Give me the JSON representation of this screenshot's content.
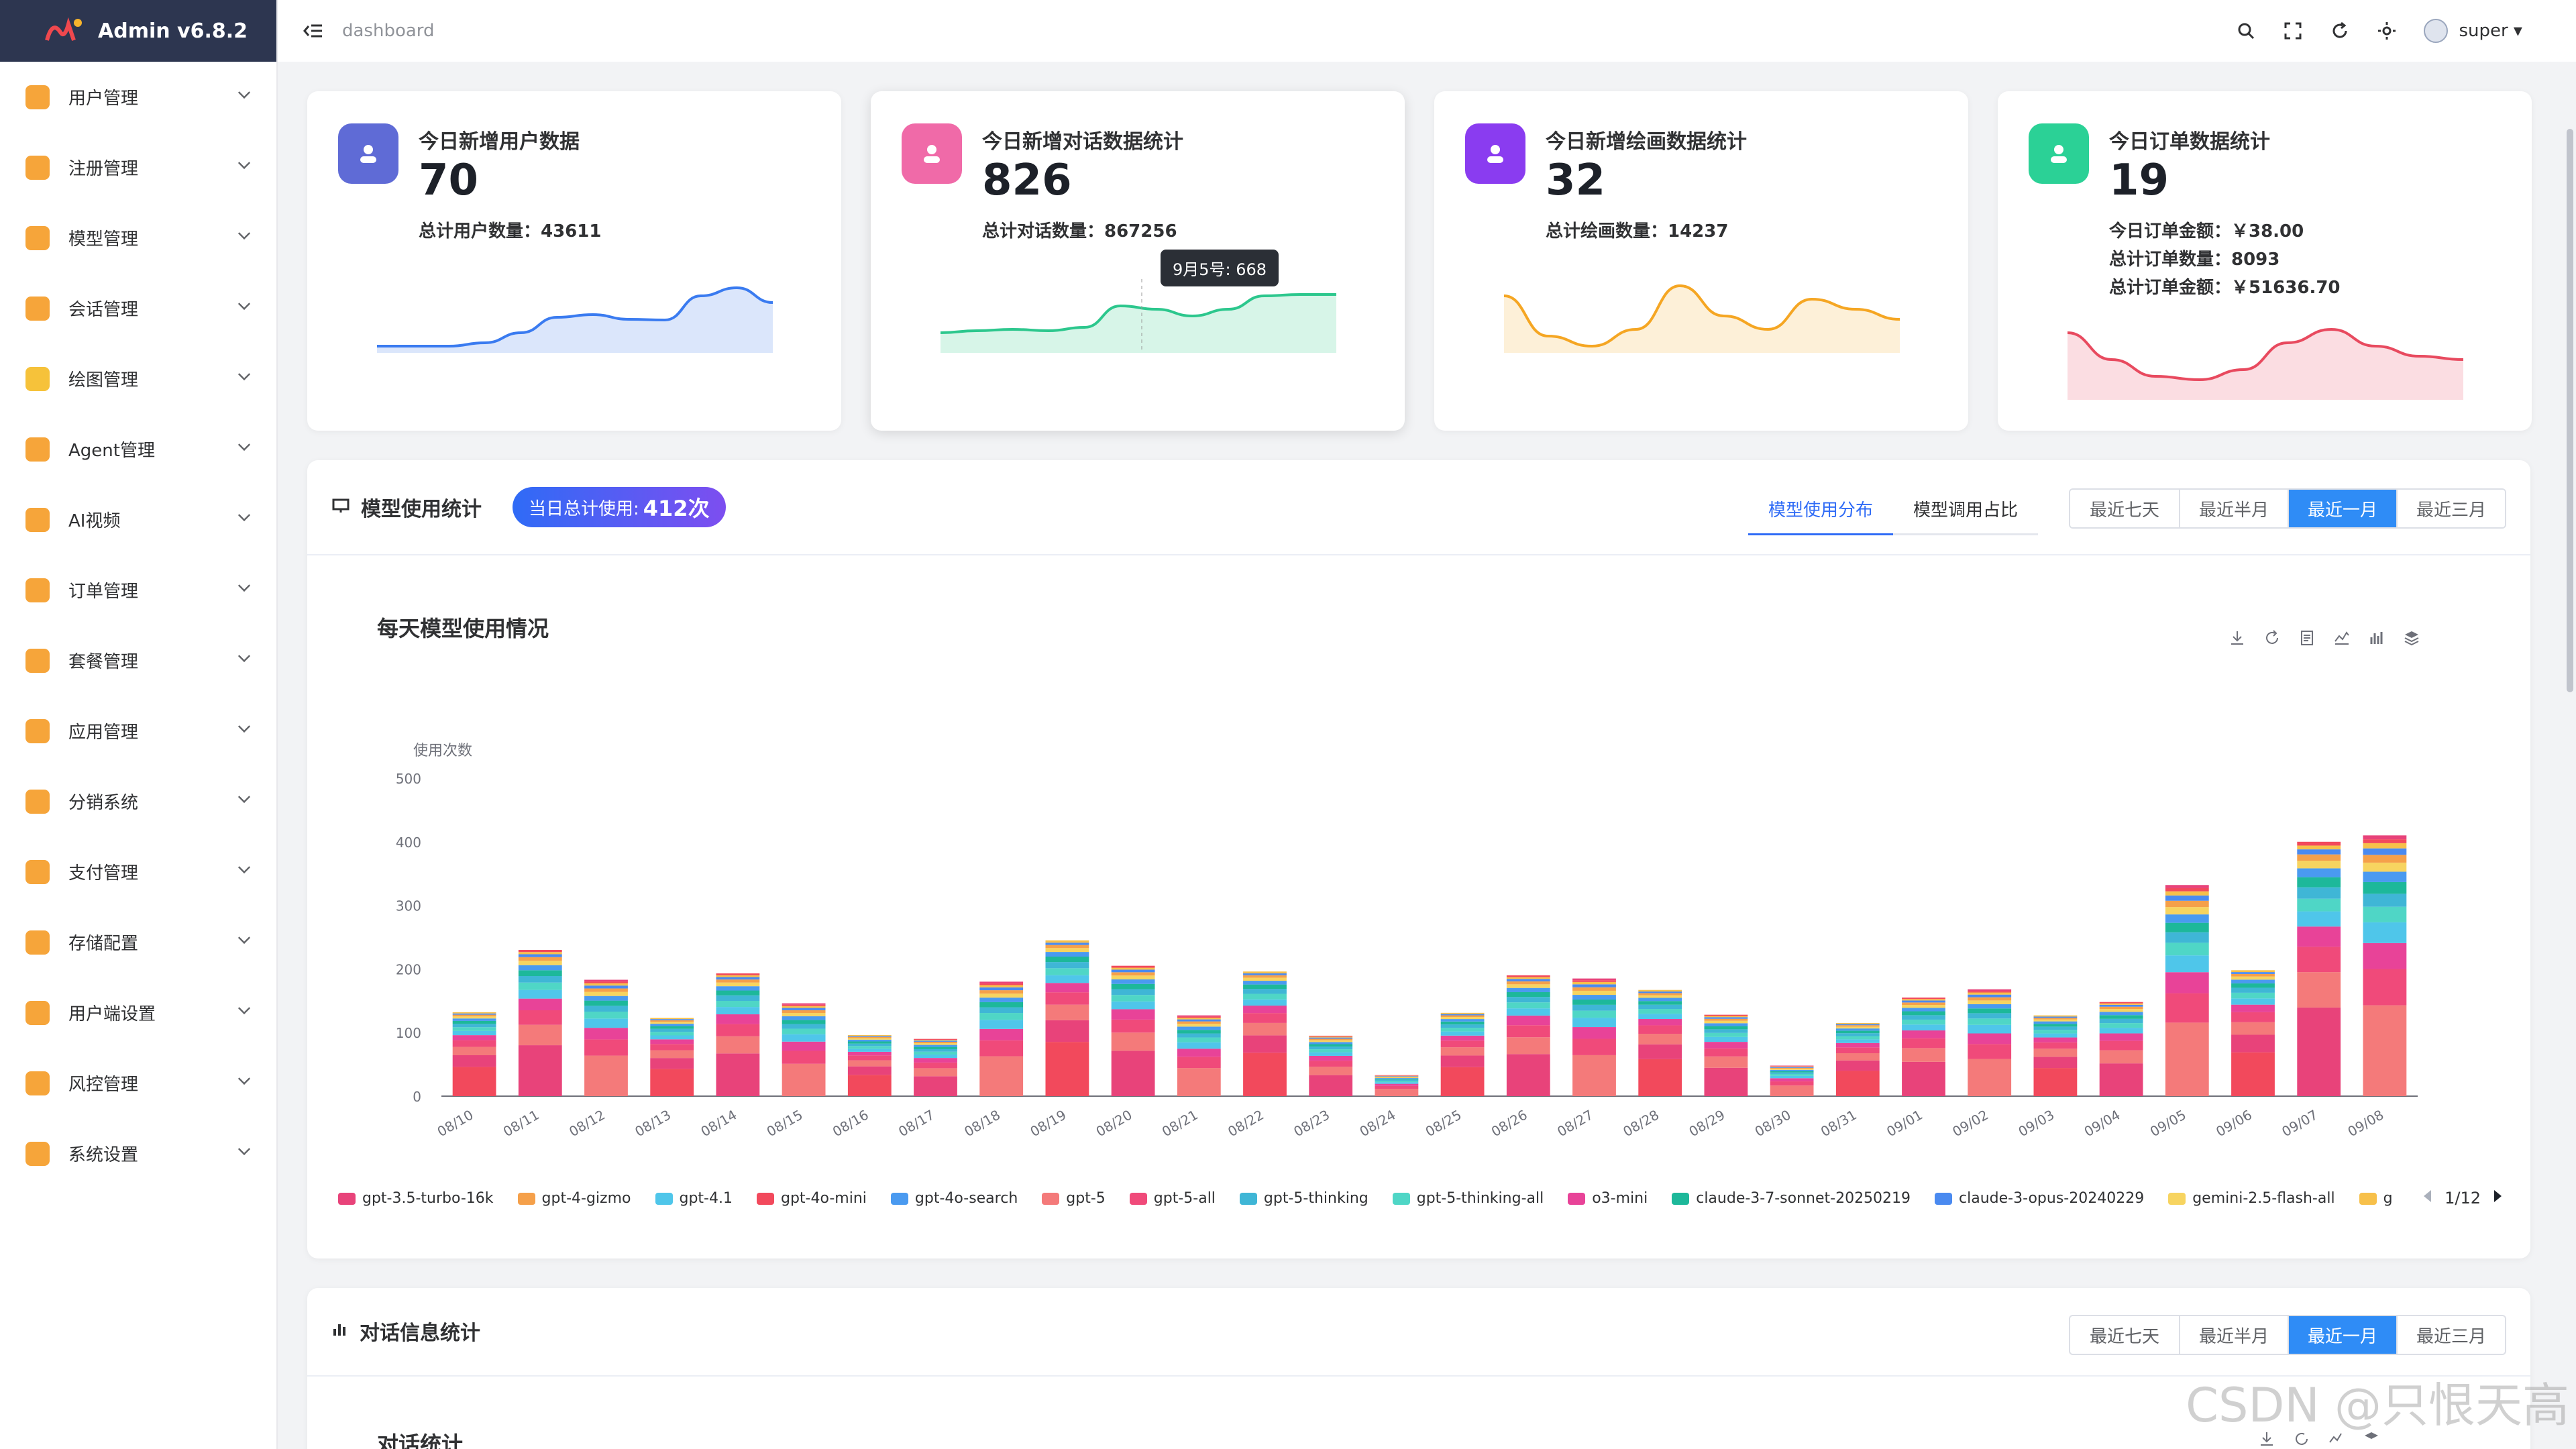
{
  "app": {
    "title": "Admin v6.8.2"
  },
  "breadcrumb": "dashboard",
  "user": {
    "name": "super"
  },
  "sidebar": {
    "items": [
      {
        "label": "用户管理",
        "color": "#f6a53a"
      },
      {
        "label": "注册管理",
        "color": "#f6a53a"
      },
      {
        "label": "模型管理",
        "color": "#f6a53a"
      },
      {
        "label": "会话管理",
        "color": "#f6a53a"
      },
      {
        "label": "绘图管理",
        "color": "#f6c23a"
      },
      {
        "label": "Agent管理",
        "color": "#f6a53a"
      },
      {
        "label": "AI视频",
        "color": "#f6a53a"
      },
      {
        "label": "订单管理",
        "color": "#f6a53a"
      },
      {
        "label": "套餐管理",
        "color": "#f6a53a"
      },
      {
        "label": "应用管理",
        "color": "#f6a53a"
      },
      {
        "label": "分销系统",
        "color": "#f6a53a"
      },
      {
        "label": "支付管理",
        "color": "#f6a53a"
      },
      {
        "label": "存储配置",
        "color": "#f6a53a"
      },
      {
        "label": "用户端设置",
        "color": "#f6a53a"
      },
      {
        "label": "风控管理",
        "color": "#f6a53a"
      },
      {
        "label": "系统设置",
        "color": "#f6a53a"
      }
    ]
  },
  "stats": [
    {
      "title": "今日新增用户数据",
      "value": "70",
      "lines": [
        "总计用户数量：43611"
      ],
      "color": "#5f6bd6",
      "line_color": "#3a7bf0",
      "fill": "#dbe6fb",
      "spark": [
        0.05,
        0.05,
        0.05,
        0.1,
        0.25,
        0.48,
        0.52,
        0.45,
        0.44,
        0.8,
        0.92,
        0.7
      ]
    },
    {
      "title": "今日新增对话数据统计",
      "value": "826",
      "lines": [
        "总计对话数量：867256"
      ],
      "color": "#f06aa8",
      "line_color": "#2cc78d",
      "fill": "#d7f5e8",
      "spark": [
        0.25,
        0.28,
        0.3,
        0.28,
        0.33,
        0.65,
        0.6,
        0.5,
        0.6,
        0.8,
        0.82,
        0.82
      ],
      "tooltip": "9月5号: 668"
    },
    {
      "title": "今日新增绘画数据统计",
      "value": "32",
      "lines": [
        "总计绘画数量：14237"
      ],
      "color": "#8a3cf0",
      "line_color": "#f5a623",
      "fill": "#fdf0d8",
      "spark": [
        0.8,
        0.2,
        0.05,
        0.3,
        0.95,
        0.5,
        0.3,
        0.75,
        0.6,
        0.45
      ]
    },
    {
      "title": "今日订单数据统计",
      "value": "19",
      "lines": [
        "今日订单金额：￥38.00",
        "总计订单数量：8093",
        "总计订单金额：￥51636.70"
      ],
      "color": "#2bd196",
      "line_color": "#e84a5f",
      "fill": "#fbdde2",
      "spark": [
        0.95,
        0.55,
        0.3,
        0.25,
        0.4,
        0.8,
        1.0,
        0.75,
        0.6,
        0.55
      ]
    }
  ],
  "model_section": {
    "title": "模型使用统计",
    "today_label": "当日总计使用:",
    "today_value": "412次",
    "tabs": [
      "模型使用分布",
      "模型调用占比"
    ],
    "ranges": [
      "最近七天",
      "最近半月",
      "最近一月",
      "最近三月"
    ],
    "chart_title": "每天模型使用情况",
    "legend_page": "1/12"
  },
  "chart_data": {
    "type": "bar",
    "stacked": true,
    "ylabel": "使用次数",
    "ylim": [
      0,
      500
    ],
    "yticks": [
      0,
      100,
      200,
      300,
      400,
      500
    ],
    "categories": [
      "08/10",
      "08/11",
      "08/12",
      "08/13",
      "08/14",
      "08/15",
      "08/16",
      "08/17",
      "08/18",
      "08/19",
      "08/20",
      "08/21",
      "08/22",
      "08/23",
      "08/24",
      "08/25",
      "08/26",
      "08/27",
      "08/28",
      "08/29",
      "08/30",
      "08/31",
      "09/01",
      "09/02",
      "09/03",
      "09/04",
      "09/05",
      "09/06",
      "09/07",
      "09/08"
    ],
    "totals": [
      132,
      230,
      183,
      123,
      193,
      146,
      96,
      90,
      180,
      245,
      205,
      127,
      196,
      95,
      33,
      131,
      190,
      185,
      167,
      128,
      48,
      115,
      155,
      168,
      127,
      148,
      332,
      198,
      400,
      410
    ],
    "series": [
      {
        "name": "gpt-3.5-turbo-16k",
        "color": "#e8437a"
      },
      {
        "name": "gpt-4-gizmo",
        "color": "#f5a04a"
      },
      {
        "name": "gpt-4.1",
        "color": "#4fc6ea"
      },
      {
        "name": "gpt-4o-mini",
        "color": "#f2495c"
      },
      {
        "name": "gpt-4o-search",
        "color": "#4a9af0"
      },
      {
        "name": "gpt-5",
        "color": "#f47a7a"
      },
      {
        "name": "gpt-5-all",
        "color": "#f04a7a"
      },
      {
        "name": "gpt-5-thinking",
        "color": "#3fb6d6"
      },
      {
        "name": "gpt-5-thinking-all",
        "color": "#4fd6c6"
      },
      {
        "name": "o3-mini",
        "color": "#e84398"
      },
      {
        "name": "claude-3-7-sonnet-20250219",
        "color": "#1db89a"
      },
      {
        "name": "claude-3-opus-20240229",
        "color": "#4a8af0"
      },
      {
        "name": "gemini-2.5-flash-all",
        "color": "#f7d460"
      },
      {
        "name": "g",
        "color": "#f7c04a"
      }
    ]
  },
  "dialog_section": {
    "title": "对话信息统计",
    "ranges": [
      "最近七天",
      "最近半月",
      "最近一月",
      "最近三月"
    ],
    "chart_title": "对话统计"
  },
  "watermark": "CSDN @只恨天高"
}
